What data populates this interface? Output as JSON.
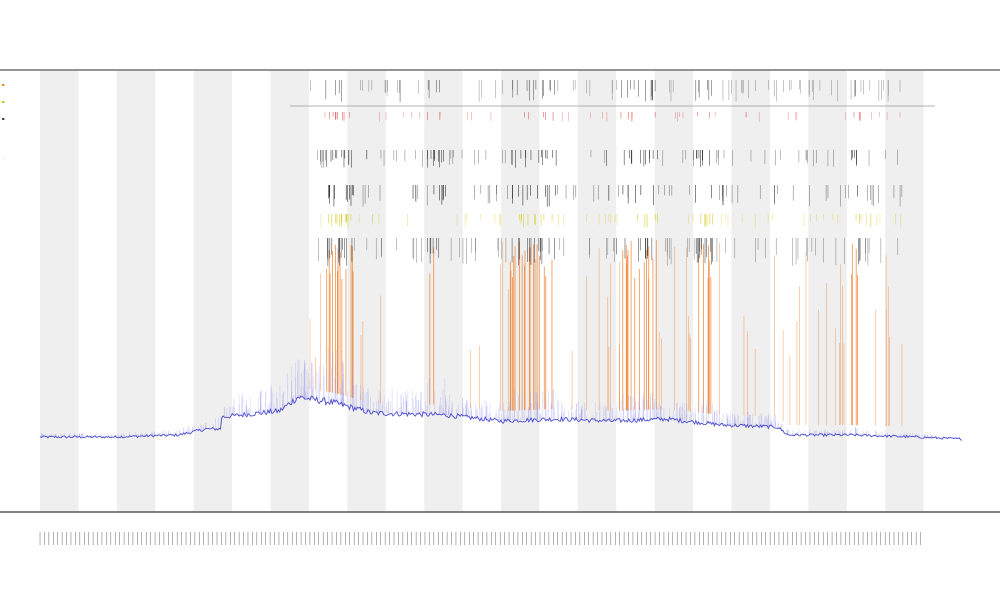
{
  "chart_data": {
    "type": "line",
    "title": [
      "",
      "",
      ""
    ],
    "xlabel": "",
    "ylabel": "",
    "legend": {
      "placement": "top-left",
      "entries": [
        {
          "name": "",
          "color": "#e08a3a"
        },
        {
          "name": "",
          "color": "#d4c400"
        },
        {
          "name": "",
          "color": "#444444"
        }
      ]
    },
    "event_legend": [
      "",
      ""
    ],
    "series": [
      {
        "name": "",
        "color": "#5b5bdc",
        "style": "line"
      },
      {
        "name": "",
        "color": "#ee7a22",
        "style": "spikes"
      },
      {
        "name": "",
        "color": "#d6cc20",
        "style": "markers"
      },
      {
        "name": "",
        "color": "#222222",
        "style": "markers"
      }
    ],
    "baseline_profile": [
      [
        0.0,
        0.0
      ],
      [
        0.08,
        0.0
      ],
      [
        0.15,
        0.01
      ],
      [
        0.18,
        0.04
      ],
      [
        0.196,
        0.04
      ],
      [
        0.197,
        0.1
      ],
      [
        0.26,
        0.13
      ],
      [
        0.28,
        0.2
      ],
      [
        0.32,
        0.17
      ],
      [
        0.36,
        0.12
      ],
      [
        0.44,
        0.11
      ],
      [
        0.5,
        0.08
      ],
      [
        0.56,
        0.09
      ],
      [
        0.62,
        0.08
      ],
      [
        0.68,
        0.09
      ],
      [
        0.74,
        0.06
      ],
      [
        0.8,
        0.05
      ],
      [
        0.811,
        0.01
      ],
      [
        0.88,
        0.01
      ],
      [
        0.95,
        0.0
      ],
      [
        1.0,
        -0.01
      ]
    ],
    "active_range": [
      0.29,
      0.935
    ],
    "hot_zones": [
      [
        0.31,
        0.34
      ],
      [
        0.42,
        0.44
      ],
      [
        0.51,
        0.56
      ],
      [
        0.63,
        0.67
      ],
      [
        0.71,
        0.73
      ],
      [
        0.88,
        0.89
      ]
    ],
    "band_count": 24,
    "x_tick_count": 200,
    "grid": false
  }
}
